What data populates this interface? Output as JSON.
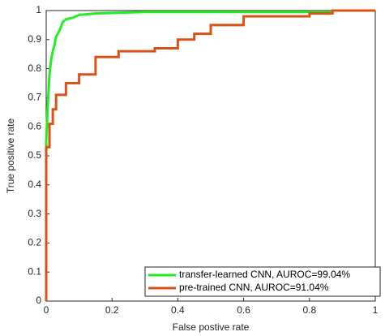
{
  "chart_data": {
    "type": "line",
    "xlabel": "False postive rate",
    "ylabel": "True positive rate",
    "xlim": [
      0,
      1
    ],
    "ylim": [
      0,
      1
    ],
    "xticks": [
      0,
      0.2,
      0.4,
      0.6,
      0.8,
      1
    ],
    "yticks": [
      0,
      0.1,
      0.2,
      0.3,
      0.4,
      0.5,
      0.6,
      0.7,
      0.8,
      0.9,
      1
    ],
    "legend": "lower right",
    "series": [
      {
        "name": "transfer-learned CNN, AUROC=99.04%",
        "color": "#22ee22",
        "x": [
          0,
          0,
          0.005,
          0.01,
          0.015,
          0.02,
          0.025,
          0.03,
          0.04,
          0.05,
          0.06,
          0.08,
          0.1,
          0.15,
          0.3,
          0.87,
          0.87,
          1
        ],
        "values": [
          0,
          0.55,
          0.68,
          0.78,
          0.83,
          0.86,
          0.88,
          0.91,
          0.93,
          0.96,
          0.97,
          0.975,
          0.985,
          0.99,
          0.995,
          0.995,
          1,
          1
        ]
      },
      {
        "name": "pre-trained CNN, AUROC=91.04%",
        "color": "#d95319",
        "x": [
          0,
          0,
          0.01,
          0.01,
          0.02,
          0.02,
          0.03,
          0.03,
          0.06,
          0.06,
          0.1,
          0.1,
          0.15,
          0.15,
          0.22,
          0.22,
          0.33,
          0.33,
          0.4,
          0.4,
          0.45,
          0.45,
          0.5,
          0.5,
          0.6,
          0.6,
          0.8,
          0.8,
          0.87,
          0.87,
          1
        ],
        "values": [
          0,
          0.53,
          0.53,
          0.61,
          0.61,
          0.66,
          0.66,
          0.71,
          0.71,
          0.75,
          0.75,
          0.78,
          0.78,
          0.84,
          0.84,
          0.86,
          0.86,
          0.87,
          0.87,
          0.9,
          0.9,
          0.92,
          0.92,
          0.95,
          0.95,
          0.98,
          0.98,
          0.99,
          0.99,
          1,
          1
        ]
      }
    ]
  }
}
